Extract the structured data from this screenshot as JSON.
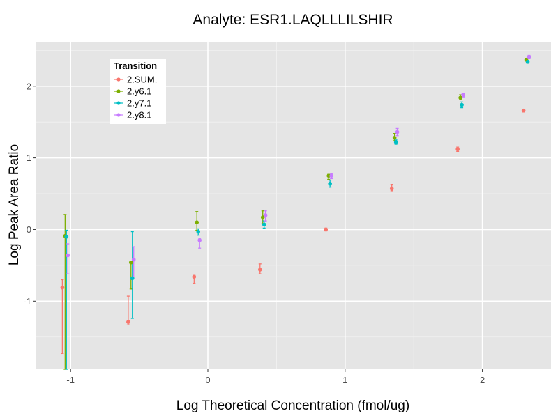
{
  "chart_data": {
    "type": "scatter",
    "title": "Analyte: ESR1.LAQLLLILSHIR",
    "xlabel": "Log Theoretical Concentration (fmol/ug)",
    "ylabel": "Log Peak Area Ratio",
    "xlim": [
      -1.25,
      2.5
    ],
    "ylim": [
      -1.95,
      2.62
    ],
    "x_ticks": [
      -1,
      0,
      1,
      2
    ],
    "y_ticks": [
      -1,
      0,
      1,
      2
    ],
    "tick_labels_x": [
      "-1",
      "0",
      "1",
      "2"
    ],
    "tick_labels_y": [
      "-1",
      "0",
      "1",
      "2"
    ],
    "grid": true,
    "legend": {
      "title": "Transition",
      "position": "top-left-inside"
    },
    "series": [
      {
        "name": "2.SUM.",
        "color": "#F8766D",
        "points": [
          {
            "x": -1.06,
            "y": -0.81,
            "lo": -1.73,
            "hi": -0.7
          },
          {
            "x": -0.58,
            "y": -1.29,
            "lo": -1.33,
            "hi": -0.93
          },
          {
            "x": -0.1,
            "y": -0.66,
            "lo": -0.75,
            "hi": -0.64
          },
          {
            "x": 0.38,
            "y": -0.56,
            "lo": -0.62,
            "hi": -0.48
          },
          {
            "x": 0.86,
            "y": 0.0,
            "lo": -0.02,
            "hi": 0.02
          },
          {
            "x": 1.34,
            "y": 0.57,
            "lo": 0.54,
            "hi": 0.63
          },
          {
            "x": 1.82,
            "y": 1.12,
            "lo": 1.09,
            "hi": 1.15
          },
          {
            "x": 2.3,
            "y": 1.66,
            "lo": 1.64,
            "hi": 1.68
          }
        ]
      },
      {
        "name": "2.y6.1",
        "color": "#7CAE00",
        "points": [
          {
            "x": -1.04,
            "y": -0.09,
            "lo": -1.95,
            "hi": 0.21
          },
          {
            "x": -0.56,
            "y": -0.46,
            "lo": -0.83,
            "hi": -0.45
          },
          {
            "x": -0.08,
            "y": 0.1,
            "lo": -0.01,
            "hi": 0.25
          },
          {
            "x": 0.4,
            "y": 0.17,
            "lo": 0.08,
            "hi": 0.26
          },
          {
            "x": 0.88,
            "y": 0.75,
            "lo": 0.7,
            "hi": 0.77
          },
          {
            "x": 1.36,
            "y": 1.28,
            "lo": 1.24,
            "hi": 1.34
          },
          {
            "x": 1.84,
            "y": 1.84,
            "lo": 1.81,
            "hi": 1.88
          },
          {
            "x": 2.32,
            "y": 2.37,
            "lo": 2.35,
            "hi": 2.39
          }
        ]
      },
      {
        "name": "2.y7.1",
        "color": "#00BFC4",
        "points": [
          {
            "x": -1.03,
            "y": -0.1,
            "lo": -1.95,
            "hi": -0.01
          },
          {
            "x": -0.55,
            "y": -0.68,
            "lo": -1.24,
            "hi": -0.03
          },
          {
            "x": -0.07,
            "y": -0.03,
            "lo": -0.08,
            "hi": 0.01
          },
          {
            "x": 0.41,
            "y": 0.07,
            "lo": 0.02,
            "hi": 0.12
          },
          {
            "x": 0.89,
            "y": 0.64,
            "lo": 0.59,
            "hi": 0.69
          },
          {
            "x": 1.37,
            "y": 1.22,
            "lo": 1.19,
            "hi": 1.25
          },
          {
            "x": 1.85,
            "y": 1.74,
            "lo": 1.7,
            "hi": 1.78
          },
          {
            "x": 2.33,
            "y": 2.34,
            "lo": 2.32,
            "hi": 2.36
          }
        ]
      },
      {
        "name": "2.y8.1",
        "color": "#C77CFF",
        "points": [
          {
            "x": -1.02,
            "y": -0.36,
            "lo": -0.62,
            "hi": -0.2
          },
          {
            "x": -0.54,
            "y": -0.42,
            "lo": -0.69,
            "hi": -0.24
          },
          {
            "x": -0.06,
            "y": -0.15,
            "lo": -0.26,
            "hi": -0.12
          },
          {
            "x": 0.42,
            "y": 0.2,
            "lo": 0.12,
            "hi": 0.26
          },
          {
            "x": 0.9,
            "y": 0.75,
            "lo": 0.71,
            "hi": 0.78
          },
          {
            "x": 1.38,
            "y": 1.36,
            "lo": 1.31,
            "hi": 1.41
          },
          {
            "x": 1.86,
            "y": 1.88,
            "lo": 1.85,
            "hi": 1.9
          },
          {
            "x": 2.34,
            "y": 2.41,
            "lo": 2.39,
            "hi": 2.43
          }
        ]
      }
    ]
  }
}
